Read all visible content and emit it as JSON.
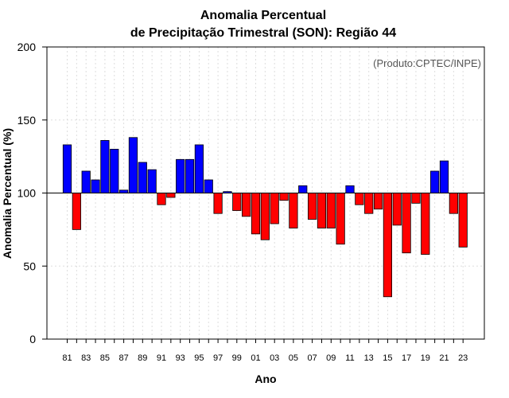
{
  "chart_data": {
    "type": "bar",
    "title_line1": "Anomalia Percentual",
    "title_line2": "de Precipitação Trimestral (SON): Região 44",
    "xlabel": "Ano",
    "ylabel": "Anomalia Percentual (%)",
    "credit": "(Produto:CPTEC/INPE)",
    "ylim": [
      0,
      200
    ],
    "yticks": [
      0,
      50,
      100,
      150,
      200
    ],
    "baseline": 100,
    "grid": true,
    "colors": {
      "above": "#0000ff",
      "below": "#ff0000",
      "edge": "#000000",
      "grid": "#dddddd"
    },
    "categories": [
      "81",
      "82",
      "83",
      "84",
      "85",
      "86",
      "87",
      "88",
      "89",
      "90",
      "91",
      "92",
      "93",
      "94",
      "95",
      "96",
      "97",
      "98",
      "99",
      "00",
      "01",
      "02",
      "03",
      "04",
      "05",
      "06",
      "07",
      "08",
      "09",
      "10",
      "11",
      "12",
      "13",
      "14",
      "15",
      "16",
      "17",
      "18",
      "19",
      "20",
      "21",
      "22",
      "23"
    ],
    "tick_labels": [
      "81",
      "83",
      "85",
      "87",
      "89",
      "91",
      "93",
      "95",
      "97",
      "99",
      "01",
      "03",
      "05",
      "07",
      "09",
      "11",
      "13",
      "15",
      "17",
      "19",
      "21",
      "23"
    ],
    "values": [
      133,
      75,
      115,
      109,
      136,
      130,
      102,
      138,
      121,
      116,
      92,
      97,
      123,
      123,
      133,
      109,
      86,
      101,
      88,
      84,
      72,
      68,
      79,
      95,
      76,
      105,
      82,
      76,
      76,
      65,
      105,
      92,
      86,
      89,
      29,
      78,
      59,
      93,
      58,
      115,
      122,
      86,
      63
    ]
  }
}
